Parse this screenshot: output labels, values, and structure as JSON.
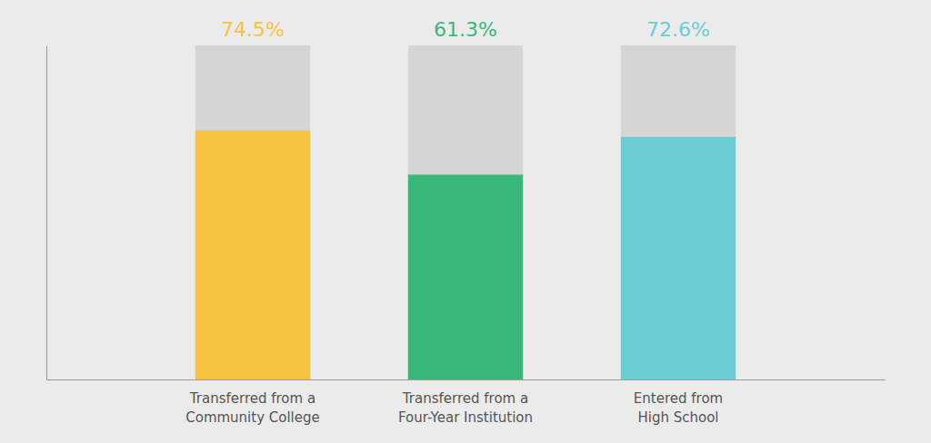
{
  "chart_data": {
    "type": "bar",
    "categories": [
      "Transferred from a\nCommunity College",
      "Transferred from a\nFour-Year Institution",
      "Entered from\nHigh School"
    ],
    "values": [
      74.5,
      61.3,
      72.6
    ],
    "value_labels": [
      "74.5%",
      "61.3%",
      "72.6%"
    ],
    "max_value": 100,
    "colors": [
      "#F7C142",
      "#3AB87A",
      "#6DCDD4"
    ],
    "ylim": [
      0,
      100
    ],
    "data_labels": true,
    "tick_labels": "x"
  }
}
